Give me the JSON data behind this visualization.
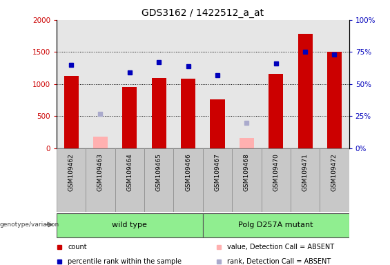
{
  "title": "GDS3162 / 1422512_a_at",
  "samples": [
    "GSM109462",
    "GSM109463",
    "GSM109464",
    "GSM109465",
    "GSM109466",
    "GSM109467",
    "GSM109468",
    "GSM109470",
    "GSM109471",
    "GSM109472"
  ],
  "red_counts": [
    1130,
    null,
    960,
    1100,
    1080,
    760,
    null,
    1160,
    1780,
    1500
  ],
  "pink_counts": [
    null,
    180,
    null,
    null,
    null,
    null,
    160,
    null,
    null,
    null
  ],
  "blue_ranks": [
    65,
    null,
    59,
    67,
    64,
    57,
    null,
    66,
    75,
    73
  ],
  "lightblue_ranks": [
    null,
    27,
    null,
    null,
    null,
    null,
    20,
    null,
    null,
    null
  ],
  "red_color": "#cc0000",
  "pink_color": "#ffb0b0",
  "blue_color": "#0000bb",
  "lightblue_color": "#aaaacc",
  "ylim_left": [
    0,
    2000
  ],
  "ylim_right": [
    0,
    100
  ],
  "yticks_left": [
    0,
    500,
    1000,
    1500,
    2000
  ],
  "yticks_right": [
    0,
    25,
    50,
    75,
    100
  ],
  "grid_values": [
    500,
    1000,
    1500
  ],
  "group1_label": "wild type",
  "group2_label": "Polg D257A mutant",
  "group1_indices": [
    0,
    1,
    2,
    3,
    4
  ],
  "group2_indices": [
    5,
    6,
    7,
    8,
    9
  ],
  "group_label_prefix": "genotype/variation",
  "legend_items": [
    {
      "color": "#cc0000",
      "label": "count"
    },
    {
      "color": "#0000bb",
      "label": "percentile rank within the sample"
    },
    {
      "color": "#ffb0b0",
      "label": "value, Detection Call = ABSENT"
    },
    {
      "color": "#aaaacc",
      "label": "rank, Detection Call = ABSENT"
    }
  ],
  "bar_width": 0.5,
  "col_bg_color": "#c8c8c8",
  "plot_bg": "#ffffff"
}
